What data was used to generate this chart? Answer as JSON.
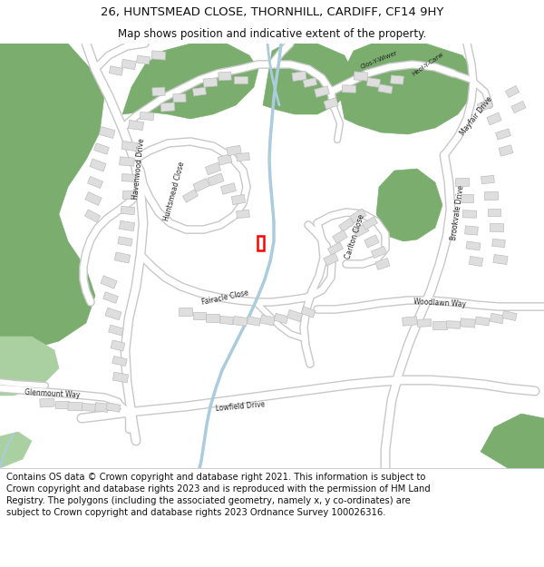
{
  "title_line1": "26, HUNTSMEAD CLOSE, THORNHILL, CARDIFF, CF14 9HY",
  "title_line2": "Map shows position and indicative extent of the property.",
  "footer": "Contains OS data © Crown copyright and database right 2021. This information is subject to Crown copyright and database rights 2023 and is reproduced with the permission of HM Land Registry. The polygons (including the associated geometry, namely x, y co-ordinates) are subject to Crown copyright and database rights 2023 Ordnance Survey 100026316.",
  "bg_color": "#ffffff",
  "map_bg": "#f0f0f0",
  "green_dark": "#7aad6e",
  "green_light": "#aacfa0",
  "road_outer": "#c8c8c8",
  "road_inner": "#ffffff",
  "building_fill": "#dedede",
  "building_edge": "#bebebe",
  "water_color": "#aaccdd",
  "red_color": "#ff0000",
  "title_fontsize": 9.5,
  "subtitle_fontsize": 8.5,
  "footer_fontsize": 7.2,
  "road_label_size": 6.0
}
